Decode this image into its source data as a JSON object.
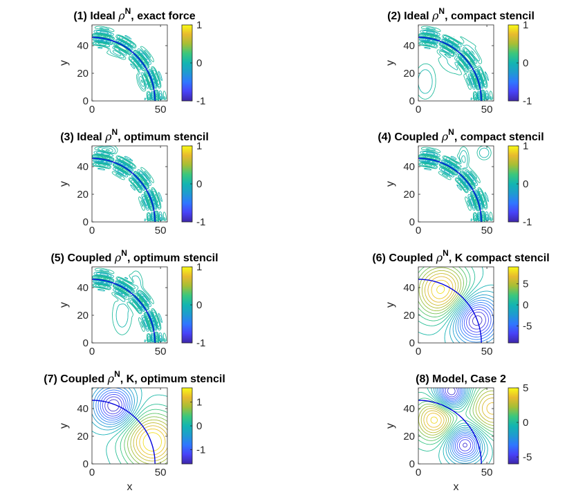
{
  "figure": {
    "background": "#ffffff"
  },
  "colormap": [
    "#3e26a8",
    "#4743f8",
    "#2f77ff",
    "#1f9bd0",
    "#13b5b1",
    "#3bc77d",
    "#a6be35",
    "#e8ba2e",
    "#f9fb15"
  ],
  "curve_color": "#0000dd",
  "chart_data": [
    {
      "type": "contour",
      "title_pre": "(1) Ideal ",
      "title_rho": "ρ",
      "title_sup": "N",
      "title_post": ", exact force",
      "xlabel": "",
      "ylabel": "y",
      "xlim": [
        0,
        55
      ],
      "ylim": [
        0,
        55
      ],
      "xticks": [
        0,
        50
      ],
      "yticks": [
        0,
        20,
        40
      ],
      "colorbar": {
        "lim": [
          -1,
          1
        ],
        "ticks": [
          -1,
          0,
          1
        ]
      },
      "pattern": "band-ring",
      "arc_radius": 46,
      "levels": 10,
      "level_range": [
        0,
        0
      ],
      "lobes": [
        {
          "x": 20,
          "y": 38,
          "sx": 7,
          "sy": 5,
          "a": 0.35
        },
        {
          "x": 38,
          "y": 16,
          "sx": 4,
          "sy": 6,
          "a": 0.35
        }
      ]
    },
    {
      "type": "contour",
      "title_pre": "(2) Ideal ",
      "title_rho": "ρ",
      "title_sup": "N",
      "title_post": ", compact stencil",
      "xlabel": "",
      "ylabel": "y",
      "xlim": [
        0,
        55
      ],
      "ylim": [
        0,
        55
      ],
      "xticks": [
        0,
        50
      ],
      "yticks": [
        0,
        20,
        40
      ],
      "colorbar": {
        "lim": [
          -1,
          1
        ],
        "ticks": [
          -1,
          0,
          1
        ]
      },
      "pattern": "band-ring",
      "arc_radius": 46,
      "levels": 10,
      "level_range": [
        0,
        0
      ],
      "lobes": [
        {
          "x": 30,
          "y": 32,
          "sx": 12,
          "sy": 10,
          "a": 0.25
        },
        {
          "x": 5,
          "y": 14,
          "sx": 6,
          "sy": 10,
          "a": 0.25
        }
      ]
    },
    {
      "type": "contour",
      "title_pre": "(3) Ideal ",
      "title_rho": "ρ",
      "title_sup": "N",
      "title_post": ", optimum stencil",
      "xlabel": "",
      "ylabel": "y",
      "xlim": [
        0,
        55
      ],
      "ylim": [
        0,
        55
      ],
      "xticks": [
        0,
        50
      ],
      "yticks": [
        0,
        20,
        40
      ],
      "colorbar": {
        "lim": [
          -1,
          1
        ],
        "ticks": [
          -1,
          0,
          1
        ]
      },
      "pattern": "band-ring",
      "arc_radius": 46,
      "levels": 10,
      "level_range": [
        0,
        0
      ],
      "lobes": [
        {
          "x": 12,
          "y": 52,
          "sx": 5,
          "sy": 3,
          "a": 0.3
        }
      ]
    },
    {
      "type": "contour",
      "title_pre": "(4) Coupled ",
      "title_rho": "ρ",
      "title_sup": "N",
      "title_post": ", compact stencil",
      "xlabel": "",
      "ylabel": "y",
      "xlim": [
        0,
        55
      ],
      "ylim": [
        0,
        55
      ],
      "xticks": [
        0,
        50
      ],
      "yticks": [
        0,
        20,
        40
      ],
      "colorbar": {
        "lim": [
          -1,
          1
        ],
        "ticks": [
          -1,
          0,
          1
        ]
      },
      "pattern": "band-ring",
      "arc_radius": 46,
      "levels": 10,
      "level_range": [
        0,
        0
      ],
      "lobes": [
        {
          "x": 33,
          "y": 45,
          "sx": 3,
          "sy": 7,
          "a": 0.3
        },
        {
          "x": 48,
          "y": 50,
          "sx": 4,
          "sy": 4,
          "a": 0.25
        }
      ]
    },
    {
      "type": "contour",
      "title_pre": "(5) Coupled ",
      "title_rho": "ρ",
      "title_sup": "N",
      "title_post": ", optimum stencil",
      "xlabel": "",
      "ylabel": "y",
      "xlim": [
        0,
        55
      ],
      "ylim": [
        0,
        55
      ],
      "xticks": [
        0,
        50
      ],
      "yticks": [
        0,
        20,
        40
      ],
      "colorbar": {
        "lim": [
          -1,
          1
        ],
        "ticks": [
          -1,
          0,
          1
        ]
      },
      "pattern": "band-ring",
      "arc_radius": 46,
      "levels": 10,
      "level_range": [
        0,
        0
      ],
      "lobes": [
        {
          "x": 32,
          "y": 40,
          "sx": 4,
          "sy": 9,
          "a": 0.3
        },
        {
          "x": 22,
          "y": 20,
          "sx": 6,
          "sy": 12,
          "a": 0.2
        }
      ]
    },
    {
      "type": "contour",
      "title_pre": "(6) Coupled ",
      "title_rho": "ρ",
      "title_sup": "N",
      "title_post": ", K compact stencil",
      "xlabel": "",
      "ylabel": "y",
      "xlim": [
        0,
        55
      ],
      "ylim": [
        0,
        55
      ],
      "xticks": [
        0,
        50
      ],
      "yticks": [
        0,
        20,
        40
      ],
      "colorbar": {
        "lim": [
          -9,
          9
        ],
        "ticks": [
          -5,
          0,
          5
        ]
      },
      "pattern": "dipole",
      "arc_radius": 46,
      "levels": 22,
      "level_range": [
        -8.5,
        8.5
      ],
      "poles": [
        {
          "x": 17,
          "y": 38,
          "a": 8.5,
          "s": 14
        },
        {
          "x": 42,
          "y": 17,
          "a": -9,
          "s": 12
        }
      ]
    },
    {
      "type": "contour",
      "title_pre": "(7) Coupled ",
      "title_rho": "ρ",
      "title_sup": "N",
      "title_post": ", K, optimum stencil",
      "xlabel": "x",
      "ylabel": "y",
      "xlim": [
        0,
        55
      ],
      "ylim": [
        0,
        55
      ],
      "xticks": [
        0,
        50
      ],
      "yticks": [
        0,
        20,
        40
      ],
      "colorbar": {
        "lim": [
          -1.6,
          1.6
        ],
        "ticks": [
          -1,
          0,
          1
        ]
      },
      "pattern": "dipole",
      "arc_radius": 46,
      "levels": 20,
      "level_range": [
        -1.5,
        1.5
      ],
      "poles": [
        {
          "x": 16,
          "y": 42,
          "a": -1.6,
          "s": 10
        },
        {
          "x": 44,
          "y": 16,
          "a": 1.6,
          "s": 14
        }
      ]
    },
    {
      "type": "contour",
      "title_pre": "(8) Model, Case 2",
      "title_rho": "",
      "title_sup": "",
      "title_post": "",
      "xlabel": "x",
      "ylabel": "y",
      "xlim": [
        0,
        55
      ],
      "ylim": [
        0,
        55
      ],
      "xticks": [
        0,
        50
      ],
      "yticks": [
        0,
        20,
        40
      ],
      "colorbar": {
        "lim": [
          -6,
          5
        ],
        "ticks": [
          -5,
          0,
          5
        ]
      },
      "pattern": "multipole",
      "arc_radius": 46,
      "levels": 20,
      "level_range": [
        -5.5,
        4.5
      ],
      "poles": [
        {
          "x": 24,
          "y": 52,
          "a": -6,
          "s": 8
        },
        {
          "x": 12,
          "y": 32,
          "a": 4.5,
          "s": 10
        },
        {
          "x": 34,
          "y": 14,
          "a": -5.5,
          "s": 9
        },
        {
          "x": 54,
          "y": 40,
          "a": 4,
          "s": 12
        }
      ]
    }
  ]
}
